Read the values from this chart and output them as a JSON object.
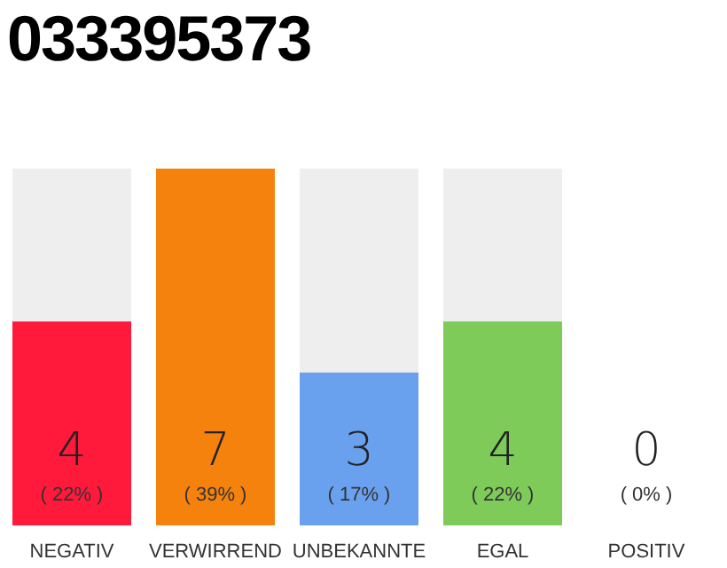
{
  "chart_data": {
    "type": "bar",
    "title": "033395373",
    "categories": [
      "NEGATIV",
      "VERWIRREND",
      "UNBEKANNTE",
      "EGAL",
      "POSITIV"
    ],
    "values": [
      4,
      7,
      3,
      4,
      0
    ],
    "colors": [
      "#ff1a3c",
      "#f5820d",
      "#6aa1ee",
      "#7ecb5a",
      "#bbbbbb"
    ],
    "data_labels": true,
    "annotations": [
      "( 22% )",
      "( 39% )",
      "( 17% )",
      "( 22% )",
      "( 0% )"
    ]
  }
}
